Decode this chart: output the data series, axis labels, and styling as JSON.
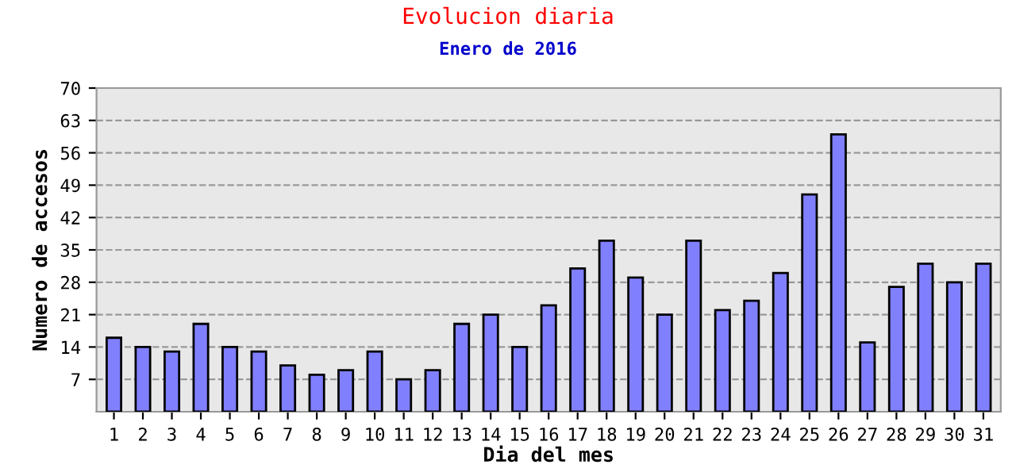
{
  "chart_data": {
    "type": "bar",
    "title": "Evolucion diaria",
    "subtitle": "Enero de 2016",
    "xlabel": "Dia del mes",
    "ylabel": "Numero de accesos",
    "categories": [
      "1",
      "2",
      "3",
      "4",
      "5",
      "6",
      "7",
      "8",
      "9",
      "10",
      "11",
      "12",
      "13",
      "14",
      "15",
      "16",
      "17",
      "18",
      "19",
      "20",
      "21",
      "22",
      "23",
      "24",
      "25",
      "26",
      "27",
      "28",
      "29",
      "30",
      "31"
    ],
    "values": [
      16,
      14,
      13,
      19,
      14,
      13,
      10,
      8,
      9,
      13,
      7,
      9,
      19,
      21,
      14,
      23,
      31,
      37,
      29,
      21,
      37,
      22,
      24,
      30,
      47,
      60,
      15,
      27,
      32,
      28,
      32
    ],
    "color": "#8080ff",
    "ylim": [
      0,
      70
    ],
    "yticks": [
      7,
      14,
      21,
      28,
      35,
      42,
      49,
      56,
      63,
      70
    ],
    "grid": "y",
    "line_style": "dashed"
  }
}
